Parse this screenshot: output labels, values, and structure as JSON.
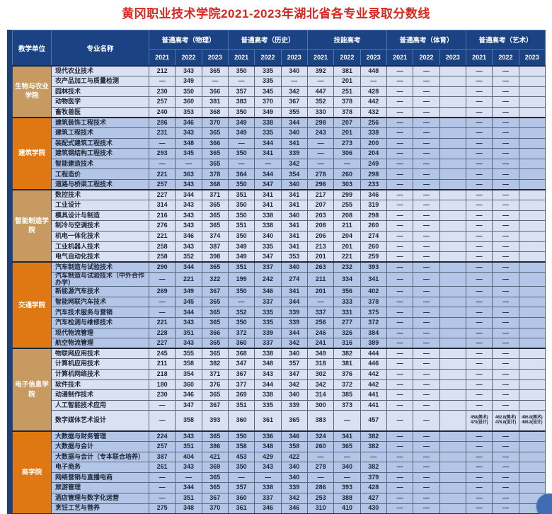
{
  "title": "黄冈职业技术学院2021-2023年湖北省各专业录取分数线",
  "colors": {
    "title_red": "#DB2620",
    "header_navy": "#1B4384",
    "left_strip_navy": "#1B4077",
    "unit_tan": "#C79A62",
    "unit_orange": "#DF7713",
    "row_band_light": "#D9E1F2",
    "row_band_dark": "#B4C6E7"
  },
  "table": {
    "header": {
      "unit": "教学单位",
      "major": "专业名称",
      "groups": [
        "普通高考（物理）",
        "普通高考（历史）",
        "技能高考",
        "普通高考（体育）",
        "普通高考（艺术）"
      ],
      "years": [
        "2021",
        "2022",
        "2023"
      ]
    },
    "groups": [
      {
        "unit": "生物与农业学院",
        "color": "tan",
        "band": "light",
        "rows": [
          {
            "name": "现代农业技术",
            "v": [
              "212",
              "343",
              "365",
              "350",
              "335",
              "340",
              "392",
              "381",
              "448",
              "—",
              "—",
              "",
              "—",
              "—",
              ""
            ]
          },
          {
            "name": "农产品加工与质量检测",
            "v": [
              "—",
              "349",
              "—",
              "—",
              "335",
              "—",
              "—",
              "201",
              "—",
              "—",
              "—",
              "",
              "—",
              "—",
              ""
            ]
          },
          {
            "name": "园林技术",
            "sep": true,
            "v": [
              "230",
              "350",
              "366",
              "357",
              "345",
              "342",
              "447",
              "251",
              "428",
              "—",
              "—",
              "",
              "—",
              "—",
              ""
            ]
          },
          {
            "name": "动物医学",
            "v": [
              "257",
              "360",
              "381",
              "383",
              "370",
              "367",
              "352",
              "378",
              "442",
              "—",
              "—",
              "",
              "—",
              "—",
              ""
            ]
          },
          {
            "name": "畜牧兽医",
            "v": [
              "240",
              "353",
              "368",
              "350",
              "349",
              "355",
              "330",
              "378",
              "432",
              "—",
              "—",
              "",
              "—",
              "—",
              ""
            ]
          }
        ]
      },
      {
        "unit": "建筑学院",
        "color": "orange",
        "band": "dark",
        "rows": [
          {
            "name": "建筑装饰工程技术",
            "v": [
              "286",
              "346",
              "370",
              "349",
              "338",
              "344",
              "298",
              "207",
              "256",
              "—",
              "—",
              "",
              "—",
              "—",
              ""
            ]
          },
          {
            "name": "建筑工程技术",
            "v": [
              "231",
              "343",
              "365",
              "349",
              "335",
              "340",
              "243",
              "201",
              "338",
              "—",
              "—",
              "",
              "—",
              "—",
              ""
            ]
          },
          {
            "name": "装配式建筑工程技术",
            "v": [
              "—",
              "348",
              "366",
              "—",
              "344",
              "341",
              "—",
              "273",
              "200",
              "—",
              "—",
              "",
              "—",
              "—",
              ""
            ]
          },
          {
            "name": "建筑钢结构工程技术",
            "v": [
              "293",
              "345",
              "365",
              "350",
              "341",
              "339",
              "—",
              "306",
              "204",
              "—",
              "—",
              "",
              "—",
              "—",
              ""
            ]
          },
          {
            "name": "智能建造技术",
            "v": [
              "—",
              "—",
              "365",
              "—",
              "—",
              "342",
              "—",
              "—",
              "249",
              "—",
              "—",
              "",
              "—",
              "—",
              ""
            ]
          },
          {
            "name": "工程造价",
            "sep": true,
            "v": [
              "221",
              "363",
              "378",
              "364",
              "344",
              "354",
              "278",
              "260",
              "298",
              "—",
              "—",
              "",
              "—",
              "—",
              ""
            ]
          },
          {
            "name": "道路与桥梁工程技术",
            "v": [
              "257",
              "343",
              "368",
              "350",
              "347",
              "340",
              "296",
              "303",
              "233",
              "—",
              "—",
              "",
              "—",
              "—",
              ""
            ]
          }
        ]
      },
      {
        "unit": "智能制造学院",
        "color": "tan",
        "band": "light",
        "rows": [
          {
            "name": "数控技术",
            "v": [
              "227",
              "344",
              "371",
              "351",
              "341",
              "341",
              "217",
              "299",
              "346",
              "—",
              "—",
              "",
              "—",
              "—",
              ""
            ]
          },
          {
            "name": "工业设计",
            "v": [
              "314",
              "343",
              "365",
              "350",
              "341",
              "341",
              "207",
              "255",
              "319",
              "—",
              "—",
              "",
              "—",
              "—",
              ""
            ]
          },
          {
            "name": "模具设计与制造",
            "v": [
              "216",
              "343",
              "365",
              "350",
              "338",
              "340",
              "203",
              "208",
              "298",
              "—",
              "—",
              "",
              "—",
              "—",
              ""
            ]
          },
          {
            "name": "制冷与空调技术",
            "v": [
              "276",
              "343",
              "365",
              "351",
              "338",
              "341",
              "208",
              "211",
              "260",
              "—",
              "—",
              "",
              "—",
              "—",
              ""
            ]
          },
          {
            "name": "机电一体化技术",
            "v": [
              "221",
              "346",
              "374",
              "350",
              "340",
              "341",
              "206",
              "204",
              "274",
              "—",
              "—",
              "",
              "—",
              "—",
              ""
            ]
          },
          {
            "name": "工业机器人技术",
            "sep": true,
            "v": [
              "258",
              "343",
              "387",
              "349",
              "335",
              "341",
              "213",
              "201",
              "260",
              "—",
              "—",
              "",
              "—",
              "—",
              ""
            ]
          },
          {
            "name": "电气自动化技术",
            "v": [
              "258",
              "352",
              "398",
              "349",
              "347",
              "353",
              "201",
              "221",
              "259",
              "—",
              "—",
              "",
              "—",
              "—",
              ""
            ]
          }
        ]
      },
      {
        "unit": "交通学院",
        "color": "orange",
        "band": "dark",
        "rows": [
          {
            "name": "汽车制造与试验技术",
            "v": [
              "290",
              "344",
              "365",
              "351",
              "337",
              "340",
              "263",
              "232",
              "393",
              "—",
              "—",
              "",
              "—",
              "—",
              ""
            ]
          },
          {
            "name": "汽车制造与试验技术（中外合作办学）",
            "v": [
              "—",
              "221",
              "322",
              "199",
              "242",
              "274",
              "211",
              "334",
              "341",
              "—",
              "—",
              "",
              "—",
              "—",
              ""
            ]
          },
          {
            "name": "新能源汽车技术",
            "v": [
              "269",
              "349",
              "367",
              "350",
              "346",
              "341",
              "201",
              "356",
              "402",
              "—",
              "—",
              "",
              "—",
              "—",
              ""
            ]
          },
          {
            "name": "智能网联汽车技术",
            "v": [
              "—",
              "345",
              "365",
              "—",
              "337",
              "344",
              "—",
              "333",
              "378",
              "—",
              "—",
              "",
              "—",
              "—",
              ""
            ]
          },
          {
            "name": "汽车技术服务与营销",
            "v": [
              "—",
              "344",
              "365",
              "352",
              "335",
              "339",
              "337",
              "331",
              "375",
              "—",
              "—",
              "",
              "—",
              "—",
              ""
            ]
          },
          {
            "name": "汽车检测与维修技术",
            "sep": true,
            "v": [
              "221",
              "343",
              "365",
              "350",
              "335",
              "339",
              "256",
              "277",
              "372",
              "—",
              "—",
              "",
              "—",
              "—",
              ""
            ]
          },
          {
            "name": "现代物流管理",
            "v": [
              "228",
              "351",
              "366",
              "372",
              "339",
              "344",
              "246",
              "326",
              "384",
              "—",
              "—",
              "",
              "—",
              "—",
              ""
            ]
          },
          {
            "name": "航空物流管理",
            "v": [
              "227",
              "343",
              "365",
              "360",
              "337",
              "342",
              "241",
              "316",
              "389",
              "—",
              "—",
              "",
              "—",
              "—",
              ""
            ]
          }
        ]
      },
      {
        "unit": "电子信息学院",
        "color": "tan",
        "band": "light",
        "rows": [
          {
            "name": "物联网应用技术",
            "v": [
              "245",
              "355",
              "365",
              "368",
              "338",
              "340",
              "349",
              "382",
              "444",
              "—",
              "—",
              "",
              "—",
              "—",
              ""
            ]
          },
          {
            "name": "计算机应用技术",
            "v": [
              "211",
              "358",
              "382",
              "347",
              "348",
              "357",
              "318",
              "381",
              "446",
              "—",
              "—",
              "",
              "—",
              "—",
              ""
            ]
          },
          {
            "name": "计算机网络技术",
            "v": [
              "218",
              "354",
              "371",
              "367",
              "343",
              "347",
              "302",
              "376",
              "442",
              "—",
              "—",
              "",
              "—",
              "—",
              ""
            ]
          },
          {
            "name": "软件技术",
            "v": [
              "180",
              "360",
              "376",
              "377",
              "344",
              "342",
              "342",
              "372",
              "442",
              "—",
              "—",
              "",
              "—",
              "—",
              ""
            ]
          },
          {
            "name": "动漫制作技术",
            "sep": true,
            "v": [
              "230",
              "346",
              "365",
              "369",
              "338",
              "340",
              "314",
              "385",
              "441",
              "—",
              "—",
              "",
              "—",
              "—",
              ""
            ]
          },
          {
            "name": "人工智能技术应用",
            "v": [
              "—",
              "347",
              "367",
              "351",
              "335",
              "339",
              "300",
              "373",
              "441",
              "—",
              "—",
              "",
              "—",
              "—",
              ""
            ]
          },
          {
            "name": "数字媒体艺术设计",
            "tall": true,
            "v": [
              "—",
              "358",
              "393",
              "360",
              "361",
              "365",
              "383",
              "—",
              "457",
              "—",
              "—",
              "",
              "458(美术)\n470(设计)",
              "462.8(美术)\n478.8(设计)",
              "496.8(美术)\n498.8(设计)"
            ]
          }
        ]
      },
      {
        "unit": "商学院",
        "color": "orange",
        "band": "dark",
        "rows": [
          {
            "name": "大数据与财务管理",
            "v": [
              "224",
              "343",
              "365",
              "350",
              "336",
              "346",
              "324",
              "341",
              "382",
              "—",
              "—",
              "",
              "—",
              "—",
              ""
            ]
          },
          {
            "name": "大数据与会计",
            "v": [
              "257",
              "351",
              "386",
              "358",
              "348",
              "358",
              "260",
              "365",
              "382",
              "—",
              "—",
              "",
              "—",
              "—",
              ""
            ]
          },
          {
            "name": "大数据与会计（专本联合培养）",
            "sep": true,
            "v": [
              "387",
              "404",
              "421",
              "453",
              "429",
              "422",
              "—",
              "—",
              "—",
              "—",
              "—",
              "",
              "—",
              "—",
              ""
            ]
          },
          {
            "name": "电子商务",
            "v": [
              "261",
              "343",
              "369",
              "350",
              "343",
              "340",
              "278",
              "340",
              "382",
              "—",
              "—",
              "",
              "—",
              "—",
              ""
            ]
          },
          {
            "name": "网络营销与直播电商",
            "v": [
              "—",
              "—",
              "365",
              "—",
              "—",
              "340",
              "—",
              "—",
              "379",
              "—",
              "—",
              "",
              "—",
              "—",
              ""
            ]
          },
          {
            "name": "旅游管理",
            "v": [
              "—",
              "344",
              "365",
              "357",
              "338",
              "339",
              "286",
              "393",
              "428",
              "—",
              "—",
              "",
              "—",
              "—",
              ""
            ]
          },
          {
            "name": "酒店管理与数字化运营",
            "v": [
              "—",
              "351",
              "367",
              "360",
              "337",
              "342",
              "253",
              "388",
              "427",
              "—",
              "—",
              "",
              "—",
              "—",
              ""
            ]
          },
          {
            "name": "烹饪工艺与营养",
            "v": [
              "275",
              "348",
              "370",
              "361",
              "346",
              "346",
              "310",
              "410",
              "430",
              "—",
              "—",
              "",
              "—",
              "—",
              ""
            ]
          }
        ]
      },
      {
        "unit": "",
        "color": "tan",
        "band": "light",
        "rows": [
          {
            "name": "",
            "v": [
              "",
              "",
              "",
              "",
              "",
              "",
              "",
              "",
              "",
              "",
              "",
              "",
              "",
              "",
              ""
            ]
          }
        ]
      }
    ]
  }
}
